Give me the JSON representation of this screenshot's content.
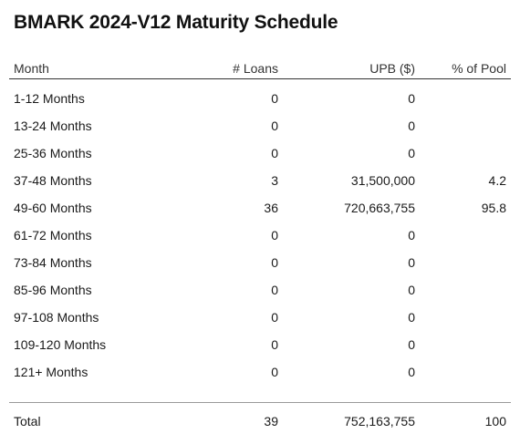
{
  "title": "BMARK 2024-V12 Maturity Schedule",
  "columns": {
    "month": "Month",
    "loans": "# Loans",
    "upb": "UPB ($)",
    "pct": "% of Pool"
  },
  "rows": [
    {
      "month": "1-12 Months",
      "loans": "0",
      "upb": "0",
      "pct": ""
    },
    {
      "month": "13-24 Months",
      "loans": "0",
      "upb": "0",
      "pct": ""
    },
    {
      "month": "25-36 Months",
      "loans": "0",
      "upb": "0",
      "pct": ""
    },
    {
      "month": "37-48 Months",
      "loans": "3",
      "upb": "31,500,000",
      "pct": "4.2"
    },
    {
      "month": "49-60 Months",
      "loans": "36",
      "upb": "720,663,755",
      "pct": "95.8"
    },
    {
      "month": "61-72 Months",
      "loans": "0",
      "upb": "0",
      "pct": ""
    },
    {
      "month": "73-84 Months",
      "loans": "0",
      "upb": "0",
      "pct": ""
    },
    {
      "month": "85-96 Months",
      "loans": "0",
      "upb": "0",
      "pct": ""
    },
    {
      "month": "97-108 Months",
      "loans": "0",
      "upb": "0",
      "pct": ""
    },
    {
      "month": "109-120 Months",
      "loans": "0",
      "upb": "0",
      "pct": ""
    },
    {
      "month": "121+ Months",
      "loans": "0",
      "upb": "0",
      "pct": ""
    }
  ],
  "total": {
    "month": "Total",
    "loans": "39",
    "upb": "752,163,755",
    "pct": "100"
  }
}
